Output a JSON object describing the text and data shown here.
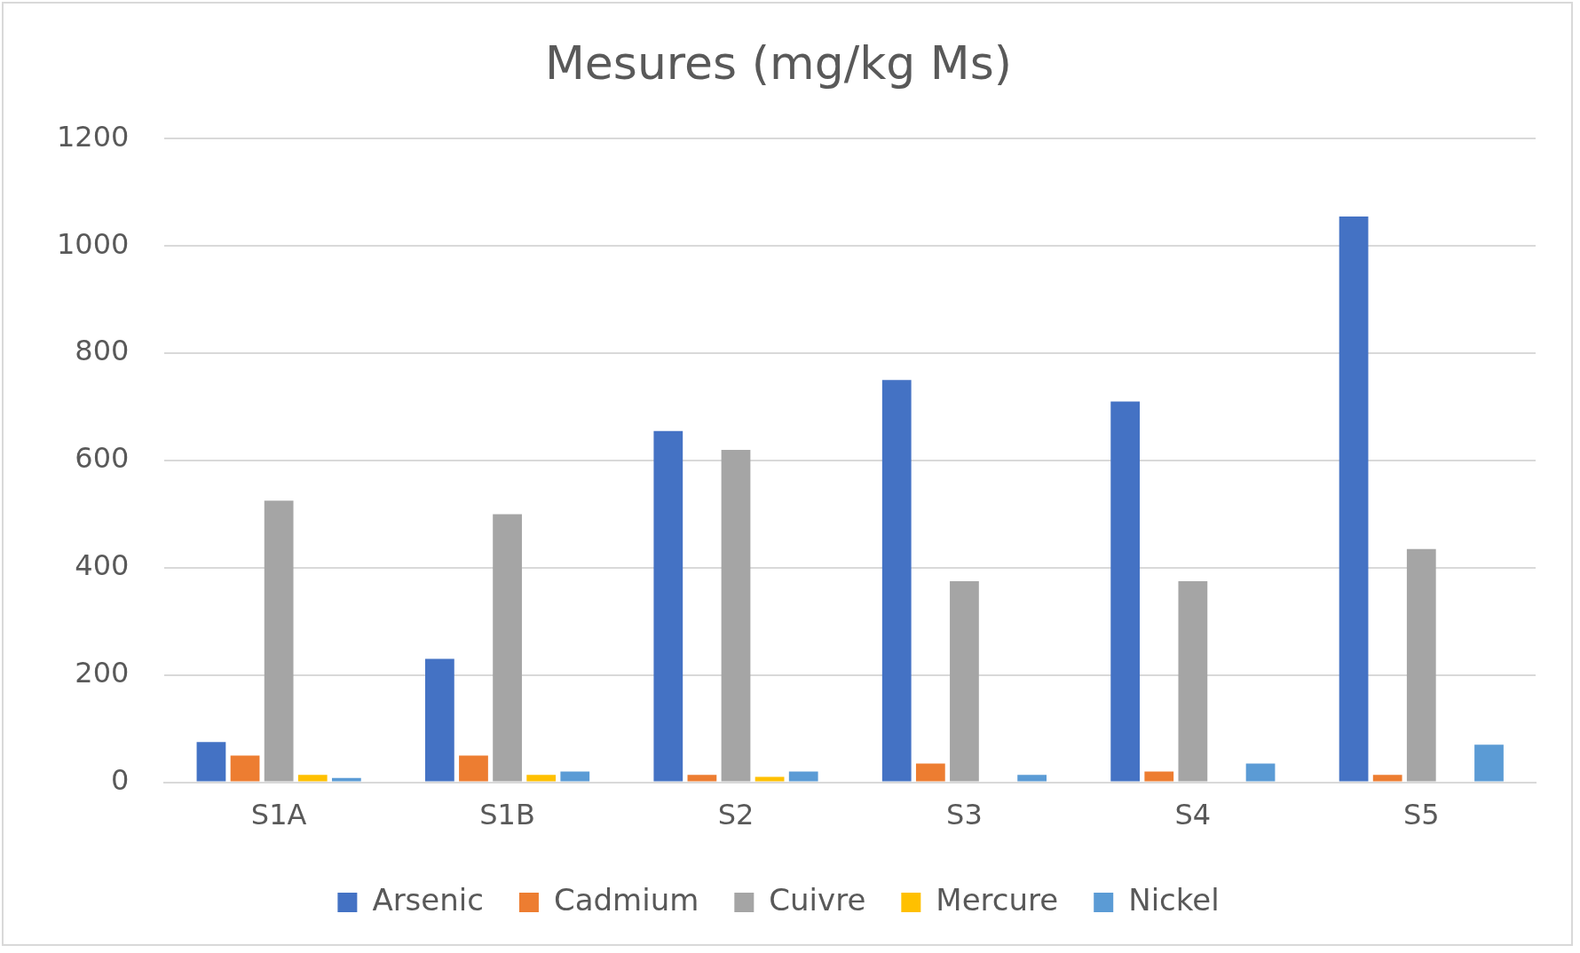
{
  "chart_data": {
    "type": "bar",
    "title": "Mesures (mg/kg Ms)",
    "categories": [
      "S1A",
      "S1B",
      "S2",
      "S3",
      "S4",
      "S5"
    ],
    "series": [
      {
        "name": "Arsenic",
        "color": "#4472c4",
        "values": [
          75,
          230,
          655,
          750,
          710,
          1055
        ]
      },
      {
        "name": "Cadmium",
        "color": "#ed7d31",
        "values": [
          50,
          50,
          14,
          35,
          20,
          14
        ]
      },
      {
        "name": "Cuivre",
        "color": "#a5a5a5",
        "values": [
          525,
          500,
          620,
          375,
          375,
          435
        ]
      },
      {
        "name": "Mercure",
        "color": "#ffc000",
        "values": [
          14,
          14,
          10,
          null,
          null,
          null
        ]
      },
      {
        "name": "Nickel",
        "color": "#5b9bd5",
        "values": [
          8,
          20,
          20,
          14,
          35,
          70
        ]
      }
    ],
    "ylim": [
      0,
      1200
    ],
    "yticks": [
      0,
      200,
      400,
      600,
      800,
      1000,
      1200
    ],
    "grid": "y",
    "legend": "bottom"
  }
}
